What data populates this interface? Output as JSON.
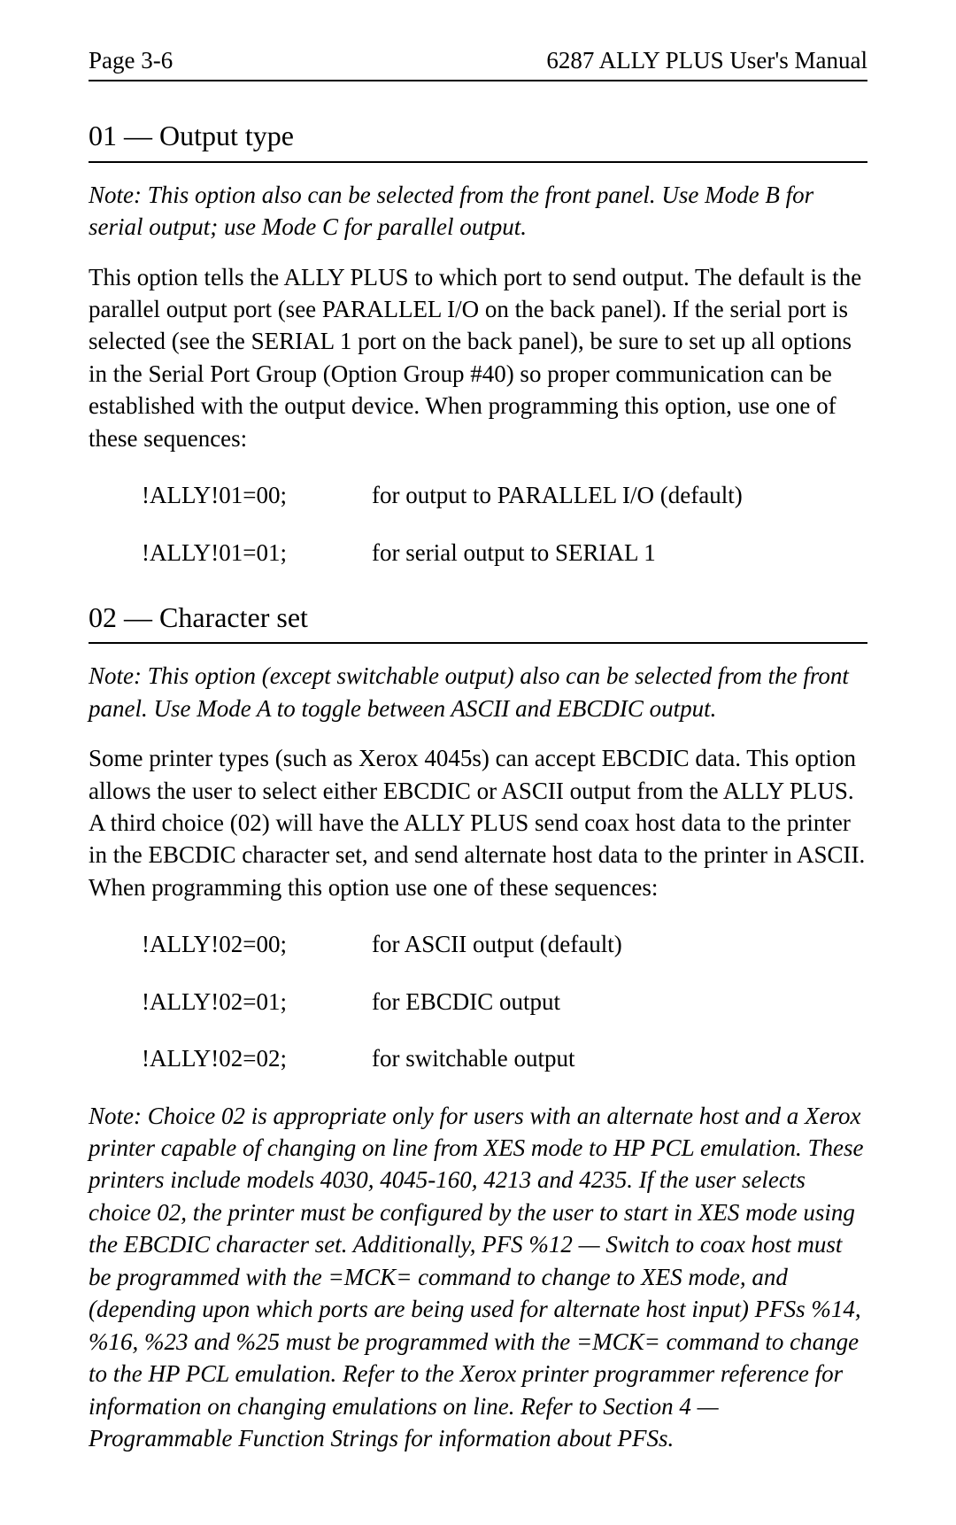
{
  "header": {
    "page_label": "Page 3-6",
    "manual_title": "6287 ALLY PLUS User's Manual"
  },
  "sections": {
    "s1": {
      "heading": "01 — Output type",
      "note": "Note: This option also can be selected from the front panel. Use Mode B for serial output; use Mode C for parallel output.",
      "body": "This option tells the ALLY PLUS to which port to send output. The default is the parallel output port (see PARALLEL I/O on the back panel). If the serial port is selected (see the SERIAL 1 port on the back panel), be sure to set up all options in the Serial Port Group (Option Group #40) so proper communication can be established with the output device. When programming this option, use one of these sequences:",
      "sequences": [
        {
          "code": "!ALLY!01=00;",
          "desc": "for output to PARALLEL I/O (default)"
        },
        {
          "code": "!ALLY!01=01;",
          "desc": "for serial output to SERIAL 1"
        }
      ]
    },
    "s2": {
      "heading": "02 — Character set",
      "note": "Note: This option (except switchable output) also can be selected from the front panel. Use Mode A to toggle between ASCII and EBCDIC output.",
      "body": "Some printer types (such as Xerox 4045s) can accept EBCDIC data. This option allows the user to select either EBCDIC or ASCII output from the ALLY PLUS. A third choice (02) will have the ALLY PLUS send coax host data to the printer in the EBCDIC character set, and send alternate host data to the printer in ASCII. When programming this option use one of these sequences:",
      "sequences": [
        {
          "code": "!ALLY!02=00;",
          "desc": "for ASCII output (default)"
        },
        {
          "code": "!ALLY!02=01;",
          "desc": "for EBCDIC output"
        },
        {
          "code": "!ALLY!02=02;",
          "desc": "for switchable output"
        }
      ],
      "final_note": "Note: Choice 02 is appropriate only for users with an alternate host and a Xerox printer capable of changing on line from XES mode to HP PCL emulation. These printers include models 4030, 4045-160, 4213 and 4235. If the user selects choice 02, the printer must be configured by the user to start in XES mode using the EBCDIC character set. Additionally, PFS %12 — Switch to coax host must be programmed with the =MCK= command to change to XES mode, and (depending upon which ports are being used for alternate host input) PFSs %14, %16, %23 and %25 must be programmed with the =MCK= command to change to the HP PCL emulation. Refer to the Xerox printer programmer reference for information on changing emulations on line. Refer to Section 4 — Programmable Function Strings for information about PFSs."
    }
  }
}
